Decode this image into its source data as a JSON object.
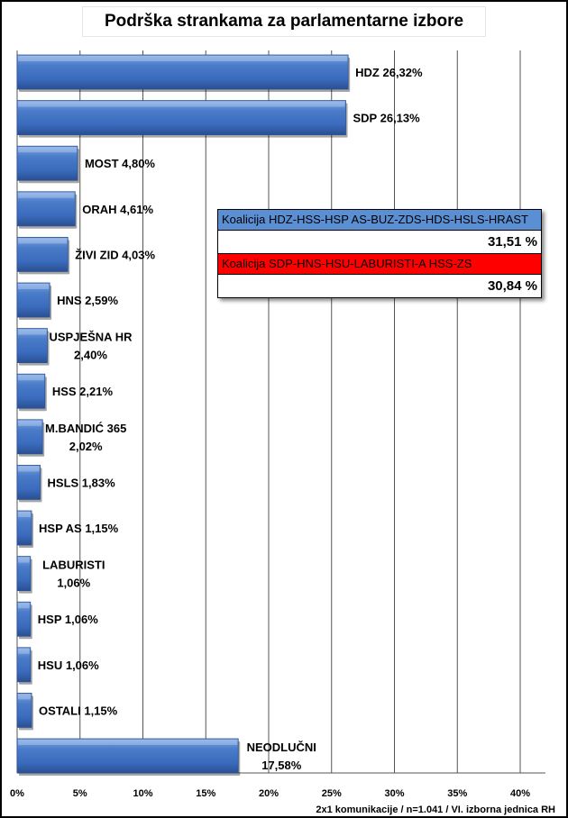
{
  "chart_data": {
    "type": "bar",
    "orientation": "horizontal",
    "title": "Podrška strankama za parlamentarne izbore",
    "categories": [
      "HDZ",
      "SDP",
      "MOST",
      "ORAH",
      "ŽIVI ZID",
      "HNS",
      "USPJEŠNA HR",
      "HSS",
      "M.BANDIĆ 365",
      "HSLS",
      "HSP AS",
      "LABURISTI",
      "HSP",
      "HSU",
      "OSTALI",
      "NEODLUČNI"
    ],
    "values": [
      26.32,
      26.13,
      4.8,
      4.61,
      4.03,
      2.59,
      2.4,
      2.21,
      2.02,
      1.83,
      1.15,
      1.06,
      1.06,
      1.06,
      1.15,
      17.58
    ],
    "labels": [
      [
        "HDZ 26,32%"
      ],
      [
        "SDP 26,13%"
      ],
      [
        "MOST 4,80%"
      ],
      [
        "ORAH 4,61%"
      ],
      [
        "ŽIVI ZID 4,03%"
      ],
      [
        "HNS 2,59%"
      ],
      [
        "USPJEŠNA HR",
        "2,40%"
      ],
      [
        "HSS 2,21%"
      ],
      [
        "M.BANDIĆ 365",
        "2,02%"
      ],
      [
        "HSLS 1,83%"
      ],
      [
        "HSP AS 1,15%"
      ],
      [
        "LABURISTI",
        "1,06%"
      ],
      [
        "HSP 1,06%"
      ],
      [
        "HSU 1,06%"
      ],
      [
        "OSTALI 1,15%"
      ],
      [
        "NEODLUČNI",
        "17,58%"
      ]
    ],
    "xlim": [
      0,
      42
    ],
    "ticks": [
      0,
      5,
      10,
      15,
      20,
      25,
      30,
      35,
      40
    ],
    "tick_labels": [
      "0%",
      "5%",
      "10%",
      "15%",
      "20%",
      "25%",
      "30%",
      "35%",
      "40%"
    ],
    "grid": true,
    "bar_color": "#3d70c3"
  },
  "coalitions": [
    {
      "name": "Koalicija HDZ-HSS-HSP AS-BUZ-ZDS-HDS-HSLS-HRAST",
      "value": "31,51 %",
      "color": "#5b8fd3"
    },
    {
      "name": "Koalicija SDP-HNS-HSU-LABURISTI-A HSS-ZS",
      "value": "30,84 %",
      "color": "#ff0000"
    }
  ],
  "source": "2x1 komunikacije / n=1.041 / VI. izborna jednica RH"
}
